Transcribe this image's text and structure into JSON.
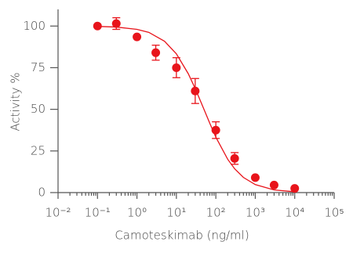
{
  "chart_data": {
    "type": "scatter",
    "x_label": "Camoteskimab (ng/ml)",
    "y_label": "Activity %",
    "color": "#e8141b",
    "x": [
      0.1,
      0.3,
      1,
      3,
      10,
      30,
      100,
      300,
      1000,
      3000,
      10000
    ],
    "values": [
      100,
      101.5,
      93.5,
      84,
      75,
      61,
      37.5,
      20.5,
      9,
      4.5,
      2.5
    ],
    "errors": [
      0,
      3.5,
      0,
      4.5,
      6,
      7.5,
      5,
      3.5,
      0,
      0,
      0
    ],
    "fit": {
      "x": [
        0.1,
        0.3,
        1,
        2,
        5,
        10,
        20,
        30,
        50,
        70,
        100,
        200,
        300,
        500,
        1000,
        3000,
        10000
      ],
      "values": [
        99.8,
        99.4,
        98,
        96.2,
        90.9,
        83.3,
        71.4,
        62.5,
        50,
        41.7,
        33.3,
        20,
        14.3,
        9.1,
        4.8,
        1.6,
        0.5
      ]
    },
    "xlog": true,
    "xlim": [
      0.01,
      100000
    ],
    "xticks": [
      {
        "value": 0.01,
        "label": "10⁻²"
      },
      {
        "value": 0.1,
        "label": "10⁻¹"
      },
      {
        "value": 1,
        "label": "10⁰"
      },
      {
        "value": 10,
        "label": "10¹"
      },
      {
        "value": 100,
        "label": "10²"
      },
      {
        "value": 1000,
        "label": "10³"
      },
      {
        "value": 10000,
        "label": "10⁴"
      },
      {
        "value": 100000,
        "label": "10⁵"
      }
    ],
    "xticks_minor": [
      0.02,
      0.03,
      0.04,
      0.05,
      0.06,
      0.07,
      0.08,
      0.09,
      0.2,
      0.3,
      0.4,
      0.5,
      0.6,
      0.7,
      0.8,
      0.9,
      2,
      3,
      4,
      5,
      6,
      7,
      8,
      9,
      20,
      30,
      40,
      50,
      60,
      70,
      80,
      90,
      200,
      300,
      400,
      500,
      600,
      700,
      800,
      900,
      2000,
      3000,
      4000,
      5000,
      6000,
      7000,
      8000,
      9000,
      20000,
      30000,
      40000,
      50000,
      60000,
      70000,
      80000,
      90000
    ],
    "ylim": [
      0,
      110
    ],
    "yticks": [
      0,
      25,
      50,
      75,
      100
    ]
  }
}
